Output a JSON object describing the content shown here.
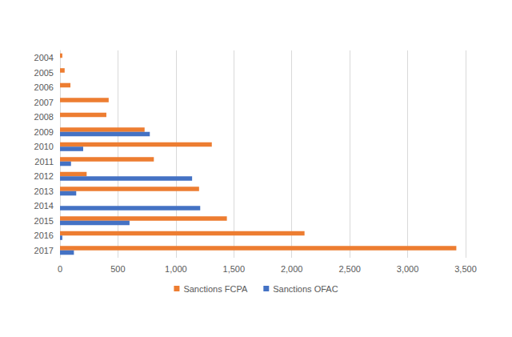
{
  "chart_data": {
    "type": "bar",
    "orientation": "horizontal",
    "categories": [
      "2004",
      "2005",
      "2006",
      "2007",
      "2008",
      "2009",
      "2010",
      "2011",
      "2012",
      "2013",
      "2014",
      "2015",
      "2016",
      "2017"
    ],
    "series": [
      {
        "name": "Sanctions FCPA",
        "color": "#ed7d31",
        "values": [
          20,
          40,
          90,
          420,
          400,
          730,
          1310,
          810,
          230,
          1200,
          null,
          1440,
          2110,
          3420
        ]
      },
      {
        "name": "Sanctions OFAC",
        "color": "#4472c4",
        "values": [
          null,
          null,
          null,
          null,
          null,
          775,
          200,
          95,
          1140,
          140,
          1210,
          600,
          20,
          120
        ]
      }
    ],
    "xlim": [
      0,
      3500
    ],
    "xticks": [
      0,
      500,
      1000,
      1500,
      2000,
      2500,
      3000,
      3500
    ],
    "grid": true,
    "legend": "bottom"
  }
}
